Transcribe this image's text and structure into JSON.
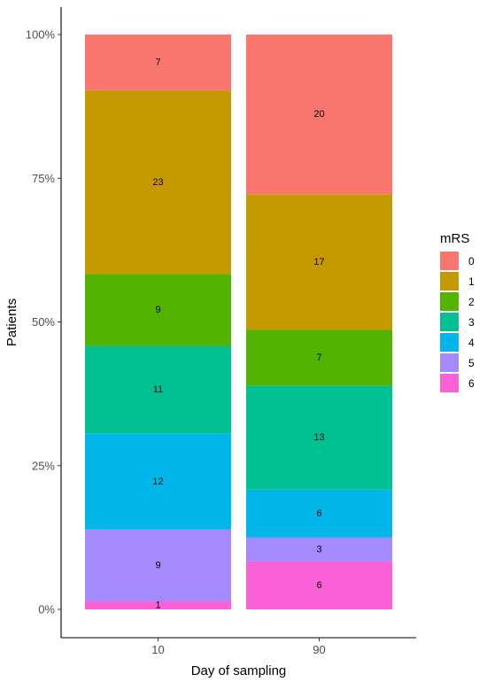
{
  "chart_data": {
    "type": "bar",
    "stacked": "percent",
    "categories": [
      "10",
      "90"
    ],
    "series": [
      {
        "name": "0",
        "color": "#F8766D",
        "values": [
          7,
          20
        ]
      },
      {
        "name": "1",
        "color": "#C49A00",
        "values": [
          23,
          17
        ]
      },
      {
        "name": "2",
        "color": "#53B400",
        "values": [
          9,
          7
        ]
      },
      {
        "name": "3",
        "color": "#00C094",
        "values": [
          11,
          13
        ]
      },
      {
        "name": "4",
        "color": "#00B6EB",
        "values": [
          12,
          6
        ]
      },
      {
        "name": "5",
        "color": "#A58AFF",
        "values": [
          9,
          3
        ]
      },
      {
        "name": "6",
        "color": "#FB61D7",
        "values": [
          1,
          6
        ]
      }
    ],
    "xlabel": "Day of sampling",
    "ylabel": "Patients",
    "yticks": [
      "0%",
      "25%",
      "50%",
      "75%",
      "100%"
    ],
    "ylim": [
      0,
      1
    ],
    "legend_title": "mRS",
    "legend_position": "right",
    "grid": false
  }
}
